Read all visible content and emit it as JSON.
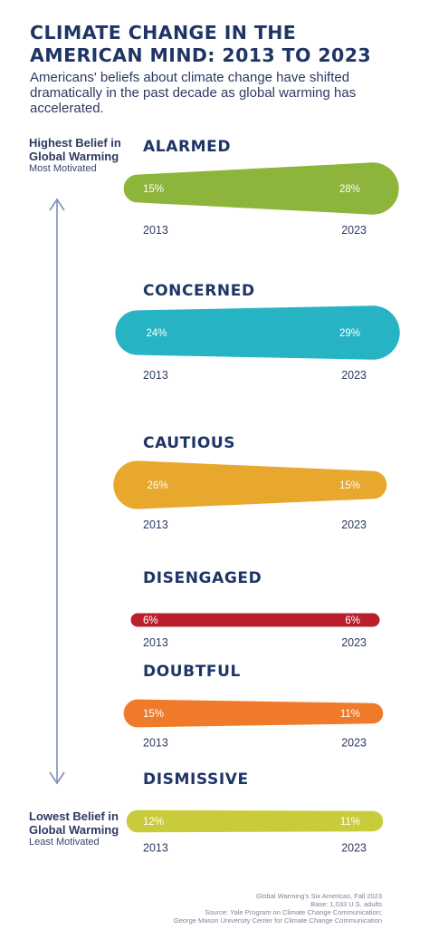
{
  "header": {
    "title": "CLIMATE CHANGE IN THE AMERICAN MIND: 2013 TO 2023",
    "subtitle": "Americans' beliefs about climate change have shifted dramatically in the past decade as global warming has accelerated."
  },
  "axis": {
    "top_strong": "Highest Belief in Global Warming",
    "top_light": "Most Motivated",
    "bottom_strong": "Lowest Belief in Global Warming",
    "bottom_light": "Least Motivated"
  },
  "source": {
    "line1": "Global Warming's Six Americas, Fall 2023",
    "line2": "Base: 1,033 U.S. adults",
    "line3": "Source: Yale Program on Climate Change Communication;",
    "line4": "George Mason University Center for Climate Change Communication"
  },
  "chart_data": {
    "type": "bar",
    "title": "CLIMATE CHANGE IN THE AMERICAN MIND: 2013 TO 2023",
    "years": [
      "2013",
      "2023"
    ],
    "series": [
      {
        "name": "ALARMED",
        "values": [
          15,
          28
        ],
        "labels": [
          "15%",
          "28%"
        ],
        "color": "#8db53c"
      },
      {
        "name": "CONCERNED",
        "values": [
          24,
          29
        ],
        "labels": [
          "24%",
          "29%"
        ],
        "color": "#26b4c4"
      },
      {
        "name": "CAUTIOUS",
        "values": [
          26,
          15
        ],
        "labels": [
          "26%",
          "15%"
        ],
        "color": "#e8a72d"
      },
      {
        "name": "DISENGAGED",
        "values": [
          6,
          6
        ],
        "labels": [
          "6%",
          "6%"
        ],
        "color": "#b91f2c"
      },
      {
        "name": "DOUBTFUL",
        "values": [
          15,
          11
        ],
        "labels": [
          "15%",
          "11%"
        ],
        "color": "#ee7a2a"
      },
      {
        "name": "DISMISSIVE",
        "values": [
          12,
          11
        ],
        "labels": [
          "12%",
          "11%"
        ],
        "color": "#c9cc3a"
      }
    ],
    "axis_colors": {
      "arrow": "#7d8fb8",
      "text": "#2d3a63"
    }
  }
}
